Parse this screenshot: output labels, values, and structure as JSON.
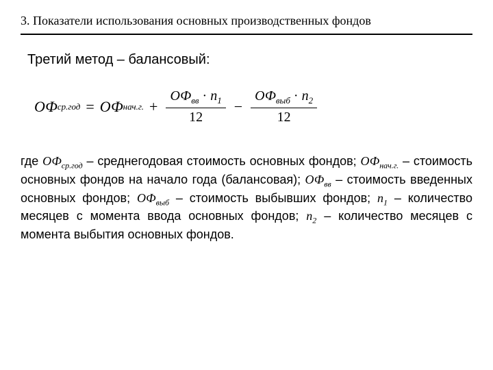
{
  "header": "3. Показатели использования основных производственных фондов",
  "subtitle": "Третий метод – балансовый:",
  "formula": {
    "lhs_base": "ОФ",
    "lhs_sub": "ср.год",
    "eq": "=",
    "t1_base": "ОФ",
    "t1_sub": "нач.г.",
    "plus": "+",
    "f1_num_base": "ОФ",
    "f1_num_sub": "вв",
    "f1_num_dot": "·",
    "f1_num_n": "n",
    "f1_num_nsub": "1",
    "f1_den": "12",
    "minus": "−",
    "f2_num_base": "ОФ",
    "f2_num_sub": "выб",
    "f2_num_dot": "·",
    "f2_num_n": "n",
    "f2_num_nsub": "2",
    "f2_den": "12"
  },
  "body": {
    "p1": "где ",
    "v1": "ОФ",
    "v1s": "ср.год",
    "t1": " – среднегодовая стоимость основных фондов; ",
    "v2": "ОФ",
    "v2s": "нач.г.",
    "t2": " – стоимость основных фондов на начало года (балансовая); ",
    "v3": "ОФ",
    "v3s": "вв",
    "t3": " – стоимость введенных основных фондов; ",
    "v4": "ОФ",
    "v4s": "выб",
    "t4": " – стоимость выбывших фондов; ",
    "v5": "n",
    "v5s": "1",
    "t5": " – количество месяцев с момента ввода основных фондов; ",
    "v6": "n",
    "v6s": "2",
    "t6": " – количество месяцев с момента выбытия основных фондов."
  }
}
